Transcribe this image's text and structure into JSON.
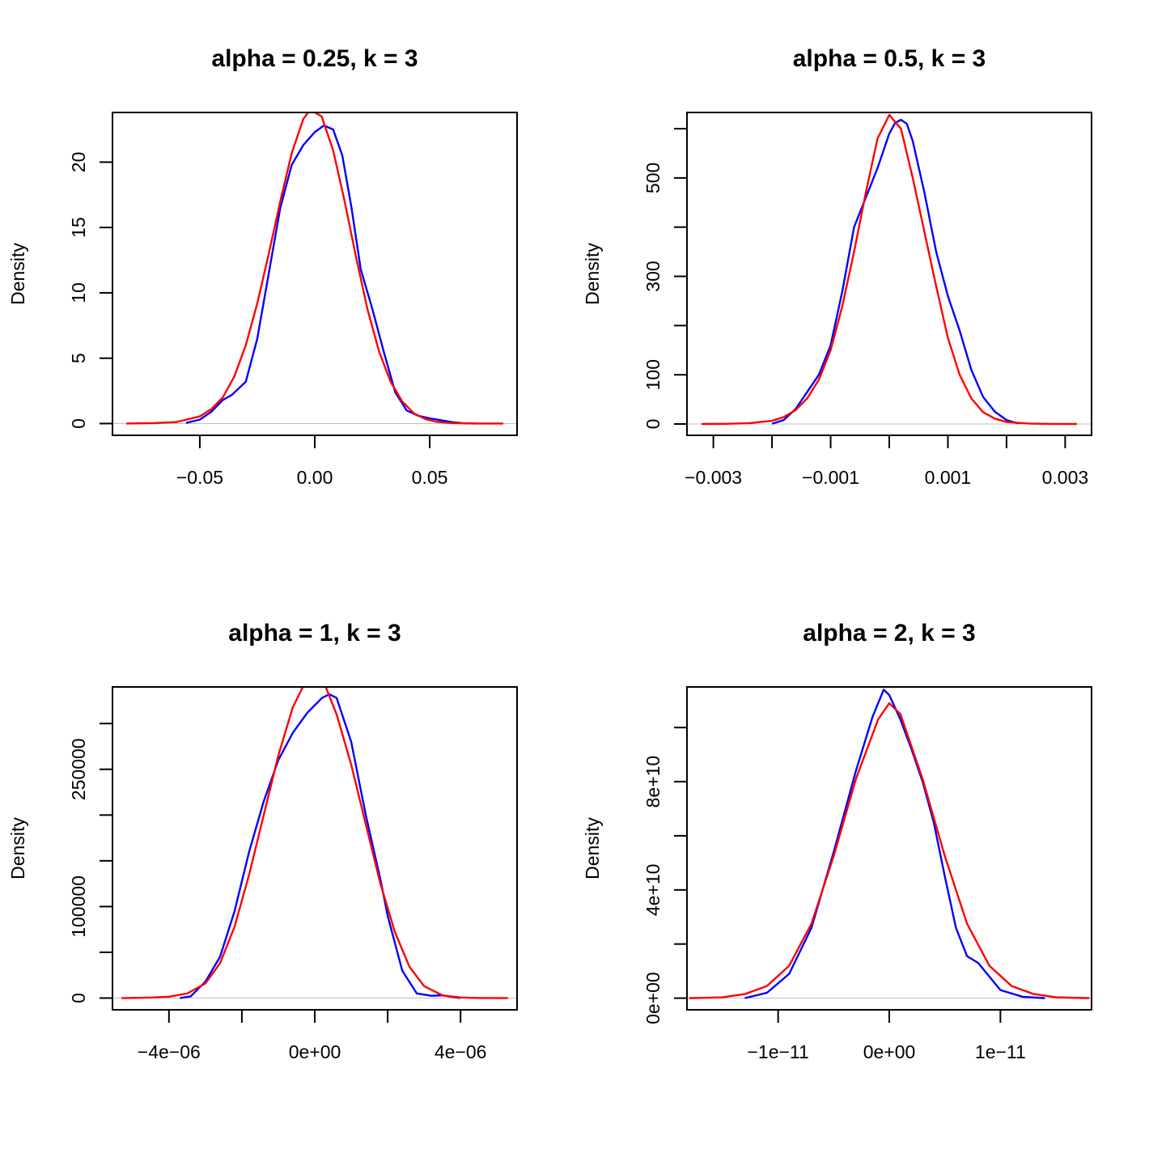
{
  "colors": {
    "empirical": "#0000ff",
    "normal": "#ff0000",
    "axis": "#000000",
    "baseline": "#bebebe"
  },
  "chart_data": [
    {
      "type": "line",
      "title": "alpha = 0.25, k = 3",
      "xlabel": "",
      "ylabel": "Density",
      "xlim": [
        -0.088,
        0.088
      ],
      "ylim": [
        -0.9,
        23.8
      ],
      "xticks": [
        -0.05,
        0.0,
        0.05
      ],
      "xtick_labels": [
        "−0.05",
        "0.00",
        "0.05"
      ],
      "yticks": [
        0,
        5,
        10,
        15,
        20
      ],
      "ytick_labels": [
        "0",
        "5",
        "10",
        "15",
        "20"
      ],
      "baseline": 0,
      "series": [
        {
          "color": "#0000ff",
          "x": [
            -0.056,
            -0.05,
            -0.045,
            -0.04,
            -0.036,
            -0.03,
            -0.025,
            -0.02,
            -0.015,
            -0.01,
            -0.005,
            0.0,
            0.004,
            0.008,
            0.012,
            0.016,
            0.02,
            0.025,
            0.03,
            0.035,
            0.04,
            0.045,
            0.05,
            0.055,
            0.06,
            0.065,
            0.07
          ],
          "y": [
            0.05,
            0.3,
            0.9,
            1.8,
            2.2,
            3.2,
            6.5,
            11.5,
            16.5,
            19.8,
            21.3,
            22.3,
            22.8,
            22.5,
            20.5,
            16.5,
            11.8,
            8.8,
            5.5,
            2.4,
            1.0,
            0.6,
            0.4,
            0.25,
            0.1,
            0.02,
            0.0
          ]
        },
        {
          "color": "#ff0000",
          "x": [
            -0.082,
            -0.07,
            -0.06,
            -0.05,
            -0.045,
            -0.04,
            -0.035,
            -0.03,
            -0.025,
            -0.02,
            -0.015,
            -0.01,
            -0.005,
            -0.002,
            0.003,
            0.008,
            0.013,
            0.018,
            0.023,
            0.028,
            0.033,
            0.038,
            0.043,
            0.048,
            0.053,
            0.06,
            0.07,
            0.082
          ],
          "y": [
            0.0,
            0.03,
            0.12,
            0.55,
            1.1,
            2.0,
            3.6,
            6.0,
            9.2,
            13.0,
            17.0,
            20.7,
            23.3,
            24.0,
            23.5,
            20.9,
            17.0,
            12.7,
            8.7,
            5.5,
            3.2,
            1.7,
            0.8,
            0.35,
            0.13,
            0.03,
            0.0,
            0.0
          ]
        }
      ]
    },
    {
      "type": "line",
      "title": "alpha = 0.5, k = 3",
      "xlabel": "",
      "ylabel": "Density",
      "xlim": [
        -0.00345,
        0.00345
      ],
      "ylim": [
        -23,
        633
      ],
      "xticks": [
        -0.003,
        -0.002,
        -0.001,
        0.0,
        0.001,
        0.002,
        0.003
      ],
      "xtick_labels": [
        "−0.003",
        "",
        "−0.001",
        "",
        "0.001",
        "",
        "0.003"
      ],
      "yticks": [
        0,
        100,
        200,
        300,
        400,
        500,
        600
      ],
      "ytick_labels": [
        "0",
        "100",
        "",
        "300",
        "",
        "500",
        ""
      ],
      "baseline": 0,
      "series": [
        {
          "color": "#0000ff",
          "x": [
            -0.002,
            -0.0018,
            -0.0016,
            -0.0014,
            -0.0012,
            -0.001,
            -0.0008,
            -0.0006,
            -0.0004,
            -0.0002,
            0.0,
            0.0001,
            0.0002,
            0.0003,
            0.0004,
            0.0006,
            0.0008,
            0.001,
            0.0012,
            0.0014,
            0.0016,
            0.0018,
            0.002,
            0.0022
          ],
          "y": [
            0.5,
            8,
            30,
            65,
            100,
            160,
            270,
            400,
            460,
            520,
            590,
            612,
            618,
            610,
            575,
            470,
            350,
            260,
            190,
            110,
            55,
            25,
            8,
            1
          ]
        },
        {
          "color": "#ff0000",
          "x": [
            -0.0032,
            -0.0028,
            -0.0024,
            -0.002,
            -0.0018,
            -0.0016,
            -0.0014,
            -0.0012,
            -0.001,
            -0.0008,
            -0.0006,
            -0.0004,
            -0.0002,
            0.0,
            0.0002,
            0.0004,
            0.0006,
            0.0008,
            0.001,
            0.0012,
            0.0014,
            0.0016,
            0.0018,
            0.002,
            0.0024,
            0.0028,
            0.0032
          ],
          "y": [
            0.0,
            0.3,
            1.5,
            6.5,
            14,
            28,
            52,
            90,
            150,
            240,
            350,
            470,
            580,
            628,
            600,
            500,
            390,
            280,
            175,
            100,
            52,
            24,
            11,
            4,
            0.8,
            0.1,
            0.0
          ]
        }
      ]
    },
    {
      "type": "line",
      "title": "alpha = 1, k = 3",
      "xlabel": "",
      "ylabel": "Density",
      "xlim": [
        -5.55e-06,
        5.55e-06
      ],
      "ylim": [
        -12800,
        340000
      ],
      "xticks": [
        -4e-06,
        -2e-06,
        0.0,
        2e-06,
        4e-06
      ],
      "xtick_labels": [
        "−4e−06",
        "",
        "0e+00",
        "",
        "4e−06"
      ],
      "yticks": [
        0,
        50000,
        100000,
        150000,
        200000,
        250000,
        300000
      ],
      "ytick_labels": [
        "0",
        "",
        "100000",
        "",
        "",
        "250000",
        ""
      ],
      "baseline": 0,
      "series": [
        {
          "color": "#0000ff",
          "x": [
            -3.7e-06,
            -3.4e-06,
            -3e-06,
            -2.6e-06,
            -2.2e-06,
            -1.8e-06,
            -1.4e-06,
            -1e-06,
            -6e-07,
            -2e-07,
            2e-07,
            4e-07,
            6e-07,
            1e-06,
            1.4e-06,
            1.8e-06,
            2e-06,
            2.4e-06,
            2.8e-06,
            3.2e-06,
            3.5e-06,
            4e-06
          ],
          "y": [
            0,
            2000,
            18000,
            45000,
            95000,
            160000,
            215000,
            260000,
            290000,
            312000,
            328000,
            332000,
            328000,
            280000,
            200000,
            130000,
            90000,
            30000,
            5000,
            2500,
            3000,
            0
          ]
        },
        {
          "color": "#ff0000",
          "x": [
            -5.3e-06,
            -4.5e-06,
            -4e-06,
            -3.5e-06,
            -3e-06,
            -2.6e-06,
            -2.2e-06,
            -1.8e-06,
            -1.4e-06,
            -1e-06,
            -6e-07,
            -2e-07,
            0.0,
            2e-07,
            6e-07,
            1e-06,
            1.4e-06,
            1.8e-06,
            2.2e-06,
            2.6e-06,
            3e-06,
            3.5e-06,
            4e-06,
            4.5e-06,
            5.3e-06
          ],
          "y": [
            0,
            500,
            1500,
            5000,
            16000,
            38000,
            78000,
            135000,
            200000,
            265000,
            318000,
            350000,
            356000,
            350000,
            310000,
            255000,
            190000,
            125000,
            72000,
            34000,
            13000,
            3000,
            600,
            100,
            0
          ]
        }
      ]
    },
    {
      "type": "line",
      "title": "alpha = 2, k = 3",
      "xlabel": "",
      "ylabel": "Density",
      "xlim": [
        -1.82e-11,
        1.82e-11
      ],
      "ylim": [
        -4300000000.0,
        115000000000.0
      ],
      "xticks": [
        -2e-11,
        -1e-11,
        0.0,
        1e-11,
        2e-11
      ],
      "xtick_labels": [
        "",
        "−1e−11",
        "0e+00",
        "1e−11",
        ""
      ],
      "yticks": [
        0,
        20000000000.0,
        40000000000.0,
        60000000000.0,
        80000000000.0,
        100000000000.0
      ],
      "ytick_labels": [
        "0e+00",
        "",
        "4e+10",
        "",
        "8e+10",
        ""
      ],
      "baseline": 0,
      "series": [
        {
          "color": "#0000ff",
          "x": [
            -1.3e-11,
            -1.1e-11,
            -9e-12,
            -7e-12,
            -5e-12,
            -3e-12,
            -1.5e-12,
            -5e-13,
            0.0,
            1e-12,
            2e-12,
            3e-12,
            4e-12,
            5e-12,
            6e-12,
            7e-12,
            8e-12,
            9e-12,
            1e-11,
            1.2e-11,
            1.4e-11
          ],
          "y": [
            0,
            2000000000.0,
            9000000000.0,
            26000000000.0,
            54000000000.0,
            84000000000.0,
            104000000000.0,
            114000000000.0,
            112000000000.0,
            103000000000.0,
            92000000000.0,
            80000000000.0,
            65000000000.0,
            45000000000.0,
            26000000000.0,
            15500000000.0,
            13000000000.0,
            8000000000.0,
            3000000000.0,
            500000000.0,
            0
          ]
        },
        {
          "color": "#ff0000",
          "x": [
            -1.8e-11,
            -1.5e-11,
            -1.3e-11,
            -1.1e-11,
            -9e-12,
            -7e-12,
            -5e-12,
            -3e-12,
            -1e-12,
            0.0,
            1e-12,
            3e-12,
            5e-12,
            7e-12,
            9e-12,
            1.1e-11,
            1.3e-11,
            1.5e-11,
            1.8e-11
          ],
          "y": [
            0,
            300000000.0,
            1500000000.0,
            4500000000.0,
            12000000000.0,
            27500000000.0,
            52500000000.0,
            81000000000.0,
            103000000000.0,
            109000000000.0,
            105000000000.0,
            81000000000.0,
            52500000000.0,
            27500000000.0,
            12000000000.0,
            4500000000.0,
            1500000000.0,
            300000000.0,
            0
          ]
        }
      ]
    }
  ]
}
